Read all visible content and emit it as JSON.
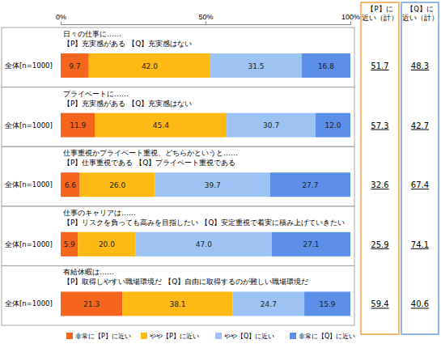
{
  "chart_data": {
    "type": "bar",
    "orientation": "horizontal",
    "stacked": true,
    "data_labels": true,
    "legend": "bottom",
    "xlim": [
      0,
      100
    ],
    "xticks": [
      {
        "value": 0,
        "label": "0%"
      },
      {
        "value": 50,
        "label": "50%"
      },
      {
        "value": 100,
        "label": "100%"
      }
    ],
    "categories": [
      "全体[n=1000]",
      "全体[n=1000]",
      "全体[n=1000]",
      "全体[n=1000]",
      "全体[n=1000]"
    ],
    "annotations": [
      [
        "日々の仕事に……",
        "【P】充実感がある 【Q】充実感はない"
      ],
      [
        "プライベートに……",
        "【P】充実感がある 【Q】充実感はない"
      ],
      [
        "仕事重視かプライベート重視、どちらかというと……",
        "【P】仕事重視である 【Q】プライベート重視である"
      ],
      [
        "仕事のキャリアは……",
        "【P】リスクを負っても高みを目指したい 【Q】安定重視で着実に積み上げていきたい"
      ],
      [
        "有給休暇は……",
        "【P】取得しやすい職場環境だ 【Q】自由に取得するのが難しい職場環境だ"
      ]
    ],
    "series": [
      {
        "name": "非常に【P】に近い",
        "color": "#f4661e",
        "values": [
          9.7,
          11.9,
          6.6,
          5.9,
          21.3
        ],
        "value_labels": [
          "9.7",
          "11.9",
          "6.6",
          "5.9",
          "21.3"
        ]
      },
      {
        "name": "やや【P】に近い",
        "color": "#ffb914",
        "values": [
          42.0,
          45.4,
          26.0,
          20.0,
          38.1
        ],
        "value_labels": [
          "42.0",
          "45.4",
          "26.0",
          "20.0",
          "38.1"
        ]
      },
      {
        "name": "やや【Q】に近い",
        "color": "#9dc3f5",
        "values": [
          31.5,
          30.7,
          39.7,
          47.0,
          24.7
        ],
        "value_labels": [
          "31.5",
          "30.7",
          "39.7",
          "47.0",
          "24.7"
        ]
      },
      {
        "name": "非常に【Q】に近い",
        "color": "#5b8fe8",
        "values": [
          16.8,
          12.0,
          27.7,
          27.1,
          15.9
        ],
        "value_labels": [
          "16.8",
          "12.0",
          "27.7",
          "27.1",
          "15.9"
        ]
      }
    ],
    "p_total": {
      "label": [
        "【P】に",
        "近い（計）"
      ],
      "color": "#f7a046",
      "values": [
        51.7,
        57.3,
        32.6,
        25.9,
        59.4
      ]
    },
    "q_total": {
      "label": [
        "【Q】に",
        "近い（計）"
      ],
      "color": "#6f9fe6",
      "values": [
        48.3,
        42.7,
        67.4,
        74.1,
        40.6
      ]
    }
  }
}
